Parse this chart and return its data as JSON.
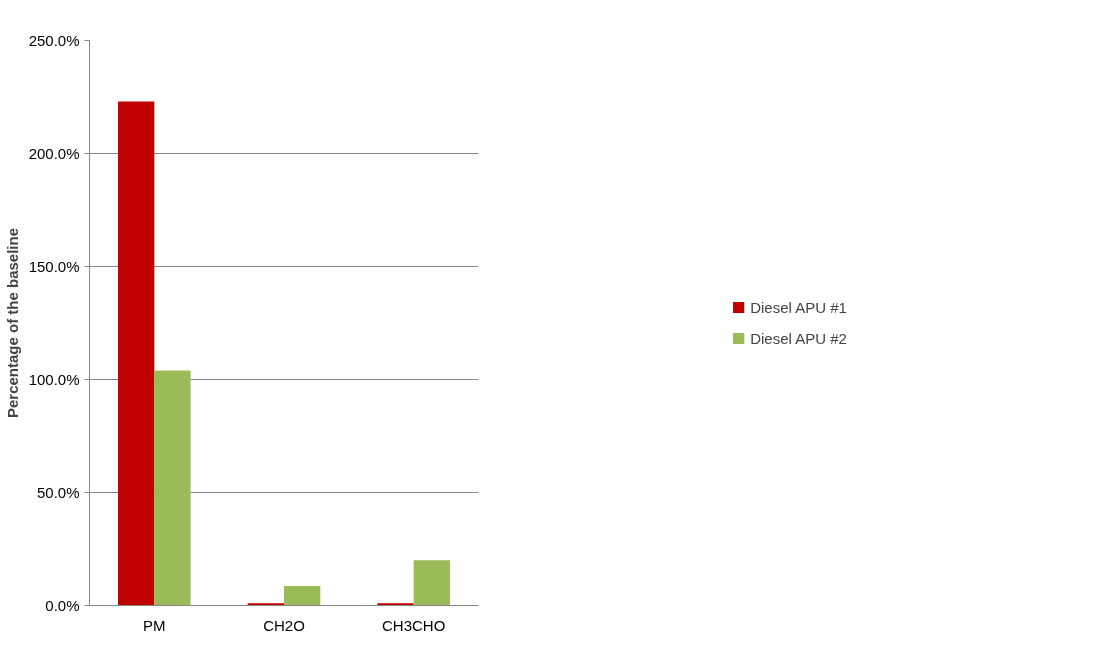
{
  "chart_data": {
    "type": "bar",
    "ylabel": "Percentage of the baseline",
    "categories": [
      "PM",
      "CH2O",
      "CH3CHO"
    ],
    "series": [
      {
        "name": "Diesel APU #1",
        "color": "#c00000",
        "values": [
          223,
          1,
          1
        ]
      },
      {
        "name": "Diesel APU #2",
        "color": "#9bbb59",
        "values": [
          104,
          8.6,
          20
        ]
      }
    ],
    "ylim": [
      0,
      250
    ],
    "yticks": [
      {
        "value": 0,
        "label": "0.0%"
      },
      {
        "value": 50,
        "label": "50.0%"
      },
      {
        "value": 100,
        "label": "100.0%"
      },
      {
        "value": 150,
        "label": "150.0%"
      },
      {
        "value": 200,
        "label": "200.0%"
      },
      {
        "value": 250,
        "label": "250.0%"
      }
    ],
    "grid": "y",
    "legend": "right"
  }
}
